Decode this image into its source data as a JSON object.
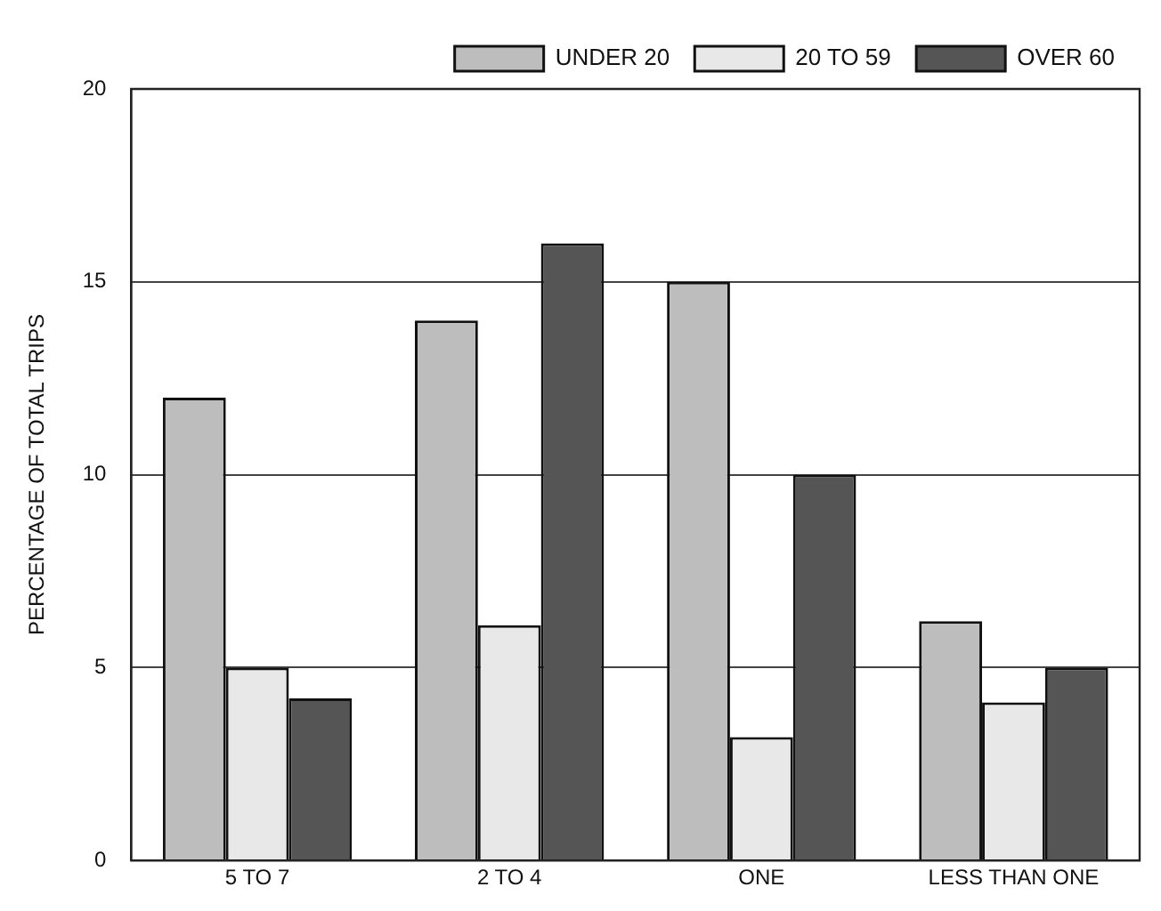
{
  "chart_data": {
    "type": "bar",
    "ylabel": "PERCENTAGE OF TOTAL TRIPS",
    "categories": [
      "5 TO 7",
      "2 TO 4",
      "ONE",
      "LESS THAN ONE"
    ],
    "series": [
      {
        "name": "UNDER 20",
        "color": "#bdbdbd",
        "values": [
          12,
          14,
          15,
          6.2
        ]
      },
      {
        "name": "20 TO 59",
        "color": "#e8e8e8",
        "values": [
          5,
          6.1,
          3.2,
          4.1
        ]
      },
      {
        "name": "OVER 60",
        "color": "#555555",
        "values": [
          4.2,
          16,
          10,
          5
        ]
      }
    ],
    "ylim": [
      0,
      20
    ],
    "yticks": [
      0,
      5,
      10,
      15,
      20
    ],
    "grid": "y",
    "legend": "top"
  }
}
